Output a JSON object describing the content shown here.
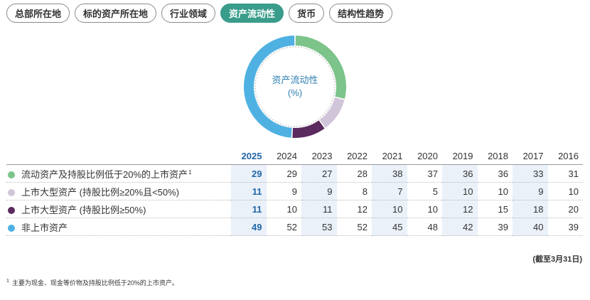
{
  "tabs": [
    {
      "label": "总部所在地",
      "active": false
    },
    {
      "label": "标的资产所在地",
      "active": false
    },
    {
      "label": "行业领域",
      "active": false
    },
    {
      "label": "资产流动性",
      "active": true
    },
    {
      "label": "货币",
      "active": false
    },
    {
      "label": "结构性趋势",
      "active": false
    }
  ],
  "donut": {
    "label_line1": "资产流动性",
    "label_line2": "(%)"
  },
  "chart_data": {
    "type": "table",
    "columns": [
      "2025",
      "2024",
      "2023",
      "2022",
      "2021",
      "2020",
      "2019",
      "2018",
      "2017",
      "2016"
    ],
    "rows": [
      {
        "label": "流动资产及持股比例低于20%的上市资产",
        "sup": "1",
        "color": "#7cc48a",
        "values": [
          "29",
          "29",
          "27",
          "28",
          "38",
          "37",
          "36",
          "36",
          "33",
          "31"
        ]
      },
      {
        "label": "上市大型资产 (持股比例≥20%且<50%)",
        "sup": "",
        "color": "#d1c5d9",
        "values": [
          "11",
          "9",
          "9",
          "8",
          "7",
          "5",
          "10",
          "10",
          "9",
          "10"
        ]
      },
      {
        "label": "上市大型资产 (持股比例≥50%)",
        "sup": "",
        "color": "#5b2a5e",
        "values": [
          "11",
          "10",
          "11",
          "12",
          "10",
          "10",
          "12",
          "15",
          "18",
          "20"
        ]
      },
      {
        "label": "非上市资产",
        "sup": "",
        "color": "#4fb1e2",
        "values": [
          "49",
          "52",
          "53",
          "52",
          "45",
          "48",
          "42",
          "39",
          "40",
          "39"
        ]
      }
    ]
  },
  "as_of": "(截至3月31日)",
  "footnote": {
    "mark": "1",
    "text": "主要为现金、现金等价物及持股比例低于20%的上市资产。"
  }
}
